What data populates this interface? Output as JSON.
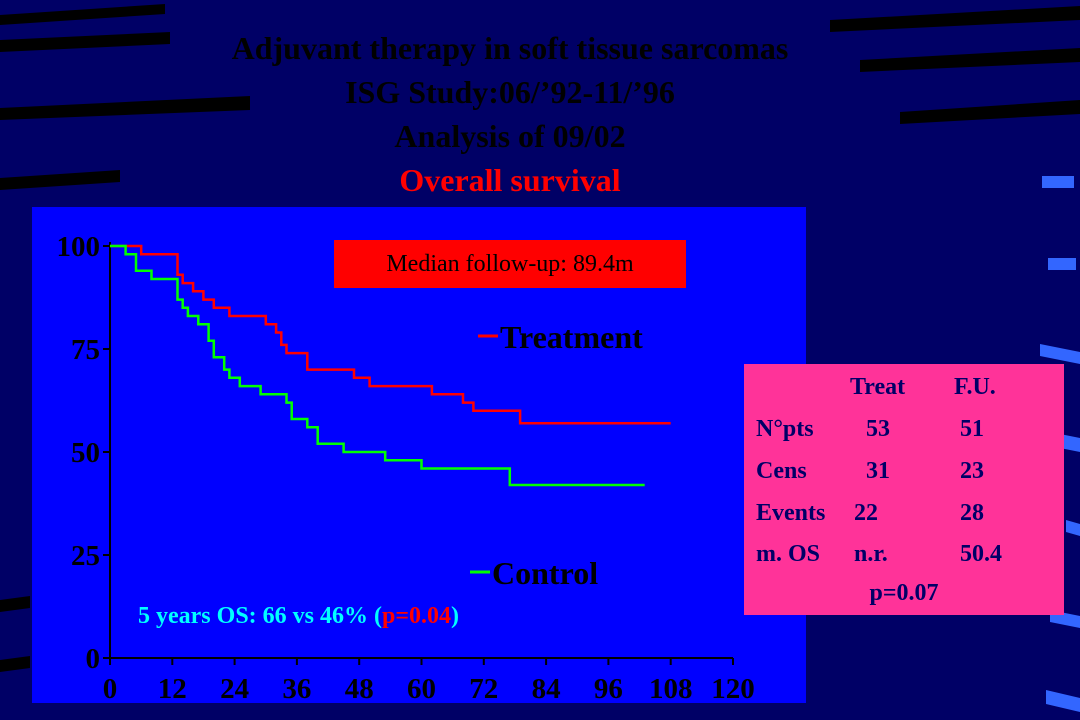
{
  "slide": {
    "title_lines": [
      "Adjuvant therapy in soft tissue sarcomas",
      "ISG Study:06/’92-11/’96",
      "Analysis of 09/02"
    ],
    "subtitle": "Overall survival",
    "median_followup": "Median follow-up: 89.4m",
    "os_note_prefix": "5 years OS: 66 vs 46% (",
    "os_note_p": "p=0.04",
    "os_note_suffix": ")",
    "stats_table": {
      "headers": [
        "Treat",
        "F.U."
      ],
      "rows": [
        {
          "label": "N°pts",
          "treat": "53",
          "fu": "51"
        },
        {
          "label": "Cens",
          "treat": "31",
          "fu": "23"
        },
        {
          "label": "Events",
          "treat": "22",
          "fu": "28"
        },
        {
          "label": "m. OS",
          "treat": "n.r.",
          "fu": "50.4"
        }
      ],
      "p_value": "p=0.07"
    },
    "colors": {
      "background": "#000066",
      "plot_background": "#0000ff",
      "treatment": "#ff0000",
      "control": "#00ff00",
      "median_box": "#ff0000",
      "stats_box": "#ff3399",
      "os_note": "#00ffff"
    }
  },
  "chart_data": {
    "type": "line",
    "title": "",
    "xlabel": "",
    "ylabel": "",
    "xlim": [
      0,
      120
    ],
    "ylim": [
      0,
      100
    ],
    "x_ticks": [
      "0",
      "12",
      "24",
      "36",
      "48",
      "60",
      "72",
      "84",
      "96",
      "108",
      "120"
    ],
    "y_ticks": [
      "0",
      "25",
      "50",
      "75",
      "100"
    ],
    "grid": false,
    "legend": "right",
    "series": [
      {
        "name": "Treatment",
        "color": "#ff0000",
        "step": true,
        "points": [
          [
            0,
            100
          ],
          [
            6,
            100
          ],
          [
            6,
            98
          ],
          [
            13,
            98
          ],
          [
            13,
            93
          ],
          [
            14,
            93
          ],
          [
            14,
            91
          ],
          [
            16,
            91
          ],
          [
            16,
            89
          ],
          [
            18,
            89
          ],
          [
            18,
            87
          ],
          [
            20,
            87
          ],
          [
            20,
            85
          ],
          [
            23,
            85
          ],
          [
            23,
            83
          ],
          [
            30,
            83
          ],
          [
            30,
            81
          ],
          [
            32,
            81
          ],
          [
            32,
            79
          ],
          [
            33,
            79
          ],
          [
            33,
            76
          ],
          [
            34,
            76
          ],
          [
            34,
            74
          ],
          [
            38,
            74
          ],
          [
            38,
            70
          ],
          [
            47,
            70
          ],
          [
            47,
            68
          ],
          [
            50,
            68
          ],
          [
            50,
            66
          ],
          [
            62,
            66
          ],
          [
            62,
            64
          ],
          [
            68,
            64
          ],
          [
            68,
            62
          ],
          [
            70,
            62
          ],
          [
            70,
            60
          ],
          [
            79,
            60
          ],
          [
            79,
            57
          ],
          [
            108,
            57
          ]
        ]
      },
      {
        "name": "Control",
        "color": "#00ff00",
        "step": true,
        "points": [
          [
            0,
            100
          ],
          [
            3,
            100
          ],
          [
            3,
            98
          ],
          [
            5,
            98
          ],
          [
            5,
            94
          ],
          [
            8,
            94
          ],
          [
            8,
            92
          ],
          [
            13,
            92
          ],
          [
            13,
            87
          ],
          [
            14,
            87
          ],
          [
            14,
            85
          ],
          [
            15,
            85
          ],
          [
            15,
            83
          ],
          [
            17,
            83
          ],
          [
            17,
            81
          ],
          [
            19,
            81
          ],
          [
            19,
            77
          ],
          [
            20,
            77
          ],
          [
            20,
            73
          ],
          [
            22,
            73
          ],
          [
            22,
            70
          ],
          [
            23,
            70
          ],
          [
            23,
            68
          ],
          [
            25,
            68
          ],
          [
            25,
            66
          ],
          [
            29,
            66
          ],
          [
            29,
            64
          ],
          [
            34,
            64
          ],
          [
            34,
            62
          ],
          [
            35,
            62
          ],
          [
            35,
            58
          ],
          [
            38,
            58
          ],
          [
            38,
            56
          ],
          [
            40,
            56
          ],
          [
            40,
            52
          ],
          [
            45,
            52
          ],
          [
            45,
            50
          ],
          [
            53,
            50
          ],
          [
            53,
            48
          ],
          [
            60,
            48
          ],
          [
            60,
            46
          ],
          [
            77,
            46
          ],
          [
            77,
            42
          ],
          [
            103,
            42
          ]
        ]
      }
    ]
  }
}
